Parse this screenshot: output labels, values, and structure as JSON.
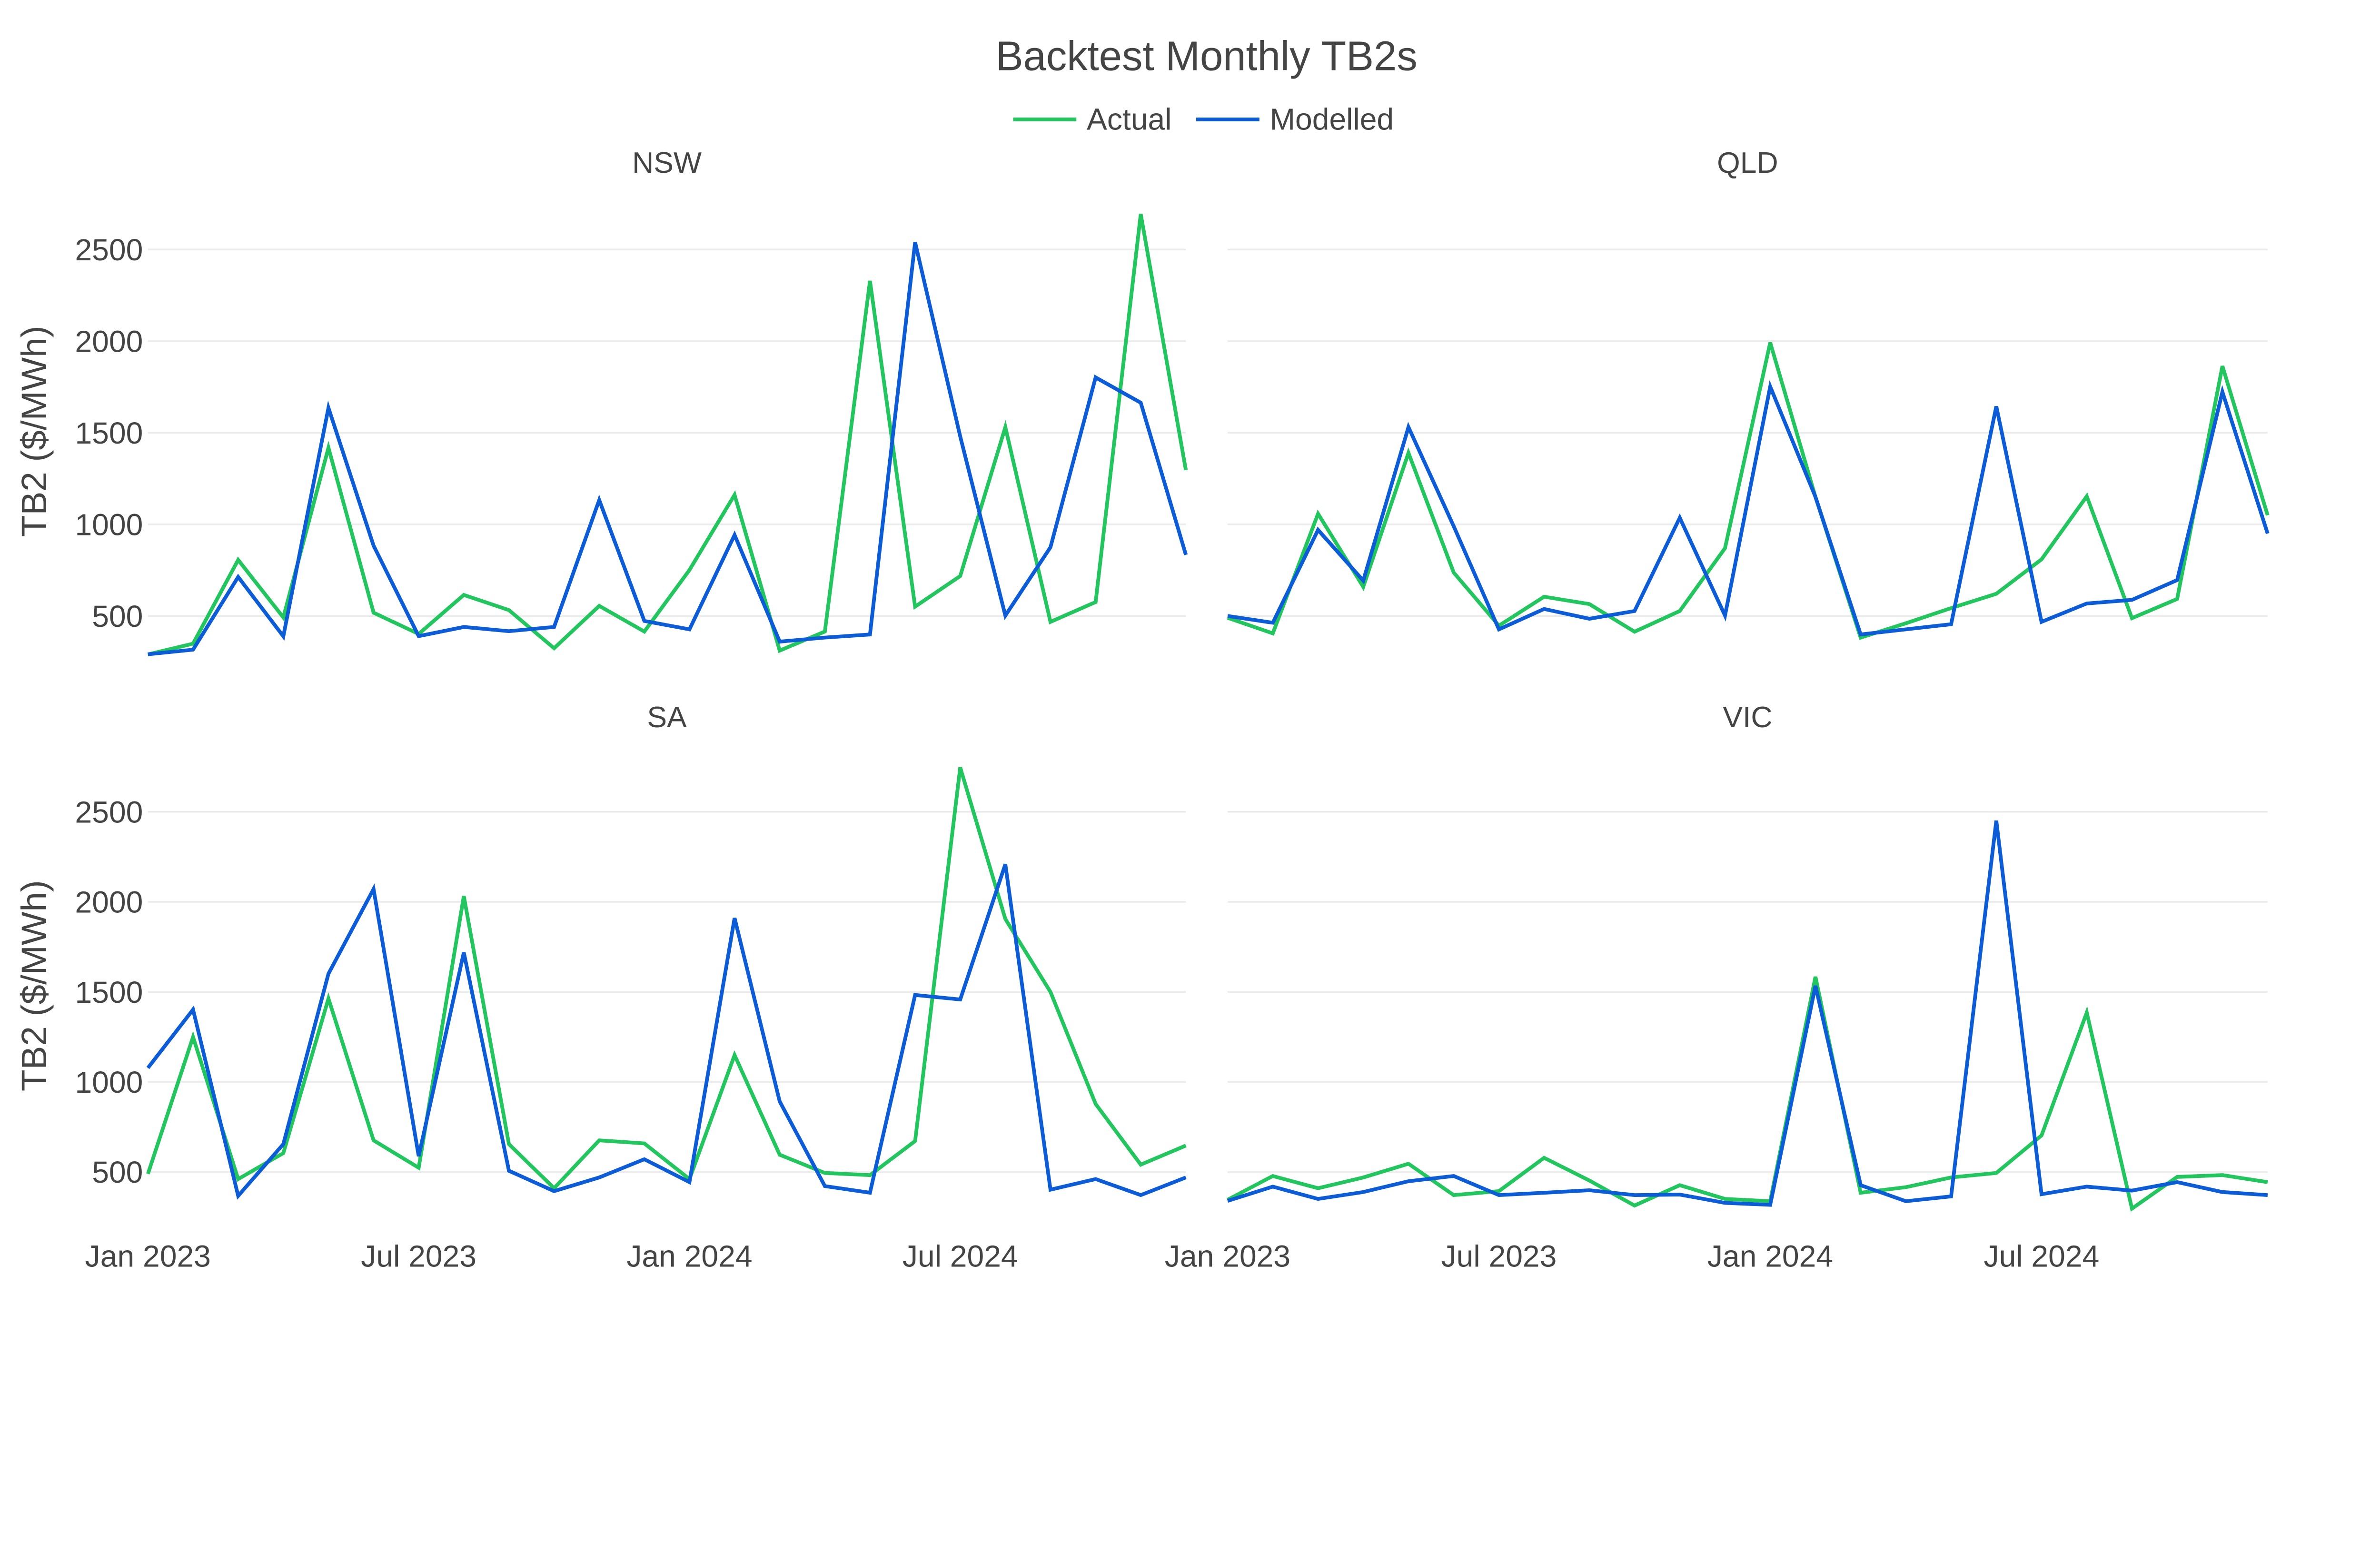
{
  "chart_data": {
    "type": "line",
    "title": "Backtest Monthly TB2s",
    "legend": {
      "placement": "top-center",
      "entries": [
        "Actual",
        "Modelled"
      ]
    },
    "colors": {
      "Actual": "#22c55e",
      "Modelled": "#0b5cd6"
    },
    "ylabel": "TB2 ($/MWh)",
    "ylim": [
      270,
      2780
    ],
    "yticks": [
      500,
      1000,
      1500,
      2000,
      2500
    ],
    "grid": true,
    "x": [
      "2023-01",
      "2023-02",
      "2023-03",
      "2023-04",
      "2023-05",
      "2023-06",
      "2023-07",
      "2023-08",
      "2023-09",
      "2023-10",
      "2023-11",
      "2023-12",
      "2024-01",
      "2024-02",
      "2024-03",
      "2024-04",
      "2024-05",
      "2024-06",
      "2024-07",
      "2024-08",
      "2024-09",
      "2024-10",
      "2024-11",
      "2024-12"
    ],
    "xticks": [
      {
        "label": "Jan 2023",
        "x": "2023-01"
      },
      {
        "label": "Jul 2023",
        "x": "2023-07"
      },
      {
        "label": "Jan 2024",
        "x": "2024-01"
      },
      {
        "label": "Jul 2024",
        "x": "2024-07"
      }
    ],
    "panels": [
      {
        "name": "NSW",
        "series": [
          {
            "name": "Actual",
            "values": [
              290,
              349,
              806,
              492,
              1418,
              518,
              402,
              615,
              532,
              324,
              555,
              415,
              751,
              1161,
              311,
              415,
              2329,
              551,
              718,
              1531,
              468,
              576,
              2694,
              1296
            ]
          },
          {
            "name": "Modelled",
            "values": [
              291,
              316,
              713,
              389,
              1636,
              884,
              390,
              440,
              417,
              440,
              1133,
              473,
              427,
              942,
              360,
              382,
              399,
              2540,
              1480,
              502,
              875,
              1802,
              1664,
              834
            ]
          }
        ]
      },
      {
        "name": "QLD",
        "series": [
          {
            "name": "Actual",
            "values": [
              490,
              405,
              1058,
              659,
              1390,
              737,
              447,
              605,
              565,
              414,
              527,
              870,
              1992,
              1150,
              382,
              460,
              543,
              621,
              809,
              1153,
              488,
              593,
              1864,
              1050
            ]
          },
          {
            "name": "Modelled",
            "values": [
              500,
              463,
              970,
              693,
              1531,
              990,
              427,
              538,
              485,
              527,
              1036,
              502,
              1752,
              1150,
              399,
              427,
              455,
              1644,
              468,
              568,
              588,
              696,
              1723,
              950
            ]
          }
        ]
      },
      {
        "name": "SA",
        "series": [
          {
            "name": "Actual",
            "values": [
              490,
              1250,
              461,
              605,
              1463,
              676,
              524,
              2032,
              655,
              410,
              676,
              659,
              461,
              1149,
              596,
              495,
              483,
              672,
              2746,
              1905,
              1500,
              878,
              541,
              647
            ]
          },
          {
            "name": "Modelled",
            "values": [
              1078,
              1402,
              368,
              655,
              1601,
              2071,
              588,
              1719,
              507,
              394,
              470,
              571,
              444,
              1910,
              892,
              422,
              385,
              1483,
              1458,
              2209,
              402,
              461,
              372,
              470
            ]
          }
        ]
      },
      {
        "name": "VIC",
        "series": [
          {
            "name": "Actual",
            "values": [
              346,
              478,
              410,
              470,
              546,
              372,
              394,
              579,
              453,
              314,
              427,
              351,
              338,
              1584,
              385,
              416,
              470,
              495,
              703,
              1385,
              297,
              473,
              483,
              444
            ]
          },
          {
            "name": "Modelled",
            "values": [
              340,
              419,
              351,
              389,
              449,
              478,
              372,
              385,
              399,
              372,
              375,
              329,
              318,
              1534,
              427,
              338,
              365,
              2451,
              377,
              419,
              397,
              444,
              389,
              372
            ]
          }
        ]
      }
    ]
  }
}
